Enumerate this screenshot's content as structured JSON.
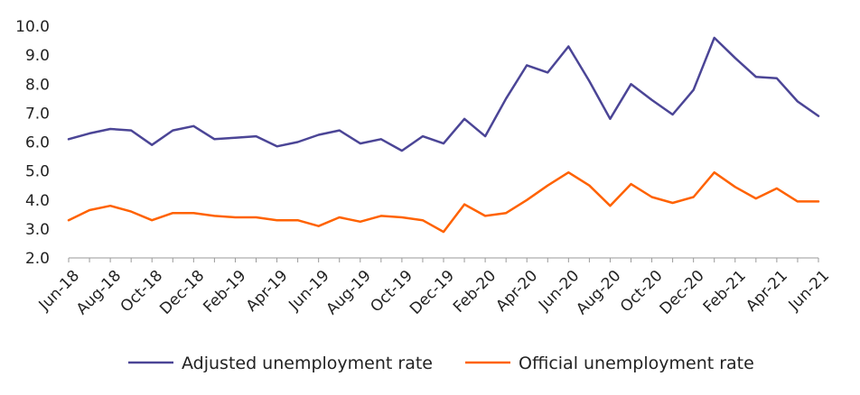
{
  "chart_data": {
    "type": "line",
    "title": "",
    "xlabel": "",
    "ylabel": "",
    "ylim": [
      2.0,
      10.0
    ],
    "y_ticks": [
      "2.0",
      "3.0",
      "4.0",
      "5.0",
      "6.0",
      "7.0",
      "8.0",
      "9.0",
      "10.0"
    ],
    "x": [
      "Jun-18",
      "Jul-18",
      "Aug-18",
      "Sep-18",
      "Oct-18",
      "Nov-18",
      "Dec-18",
      "Jan-19",
      "Feb-19",
      "Mar-19",
      "Apr-19",
      "May-19",
      "Jun-19",
      "Jul-19",
      "Aug-19",
      "Sep-19",
      "Oct-19",
      "Nov-19",
      "Dec-19",
      "Jan-20",
      "Feb-20",
      "Mar-20",
      "Apr-20",
      "May-20",
      "Jun-20",
      "Jul-20",
      "Aug-20",
      "Sep-20",
      "Oct-20",
      "Nov-20",
      "Dec-20",
      "Jan-21",
      "Feb-21",
      "Mar-21",
      "Apr-21",
      "May-21",
      "Jun-21"
    ],
    "x_tick_labels": [
      "Jun-18",
      "Aug-18",
      "Oct-18",
      "Dec-18",
      "Feb-19",
      "Apr-19",
      "Jun-19",
      "Aug-19",
      "Oct-19",
      "Dec-19",
      "Feb-20",
      "Apr-20",
      "Jun-20",
      "Aug-20",
      "Oct-20",
      "Dec-20",
      "Feb-21",
      "Apr-21",
      "Jun-21"
    ],
    "grid": false,
    "legend_position": "bottom",
    "series": [
      {
        "name": "Adjusted unemployment rate",
        "color": "#4b4596",
        "values": [
          6.1,
          6.3,
          6.45,
          6.4,
          5.9,
          6.4,
          6.55,
          6.1,
          6.15,
          6.2,
          5.85,
          6.0,
          6.25,
          6.4,
          5.95,
          6.1,
          5.7,
          6.2,
          5.95,
          6.8,
          6.2,
          7.5,
          8.65,
          8.4,
          9.3,
          8.1,
          6.8,
          8.0,
          7.45,
          6.95,
          7.8,
          9.6,
          8.9,
          8.25,
          8.2,
          7.4,
          6.9
        ]
      },
      {
        "name": "Official unemployment rate",
        "color": "#ff6200",
        "values": [
          3.3,
          3.65,
          3.8,
          3.6,
          3.3,
          3.55,
          3.55,
          3.45,
          3.4,
          3.4,
          3.3,
          3.3,
          3.1,
          3.4,
          3.25,
          3.45,
          3.4,
          3.3,
          2.9,
          3.85,
          3.45,
          3.55,
          4.0,
          4.5,
          4.95,
          4.5,
          3.8,
          4.55,
          4.1,
          3.9,
          4.1,
          4.95,
          4.45,
          4.05,
          4.4,
          3.95,
          3.95
        ]
      }
    ]
  }
}
